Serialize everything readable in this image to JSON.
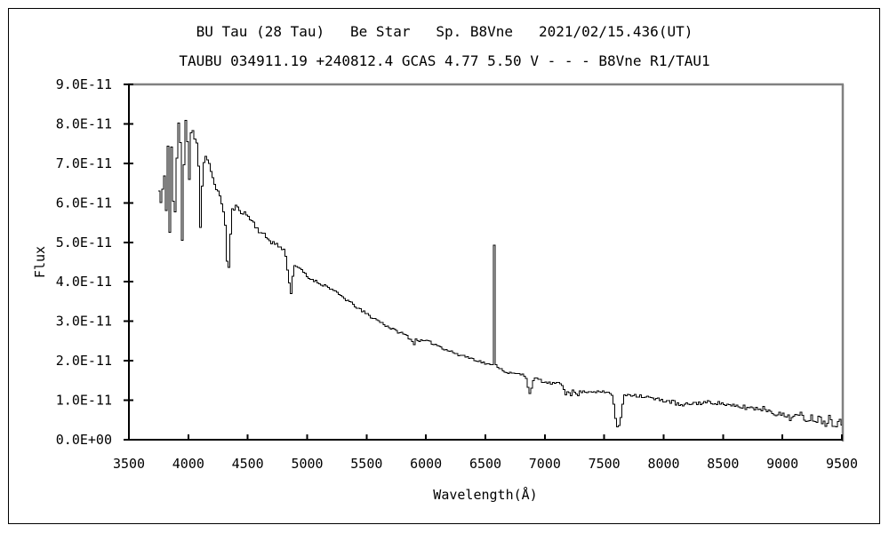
{
  "chart_data": {
    "type": "line",
    "title": "BU Tau (28 Tau)   Be Star   Sp. B8Vne   2021/02/15.436(UT)",
    "subtitle": "TAUBU 034911.19 +240812.4 GCAS 4.77 5.50 V - - - B8Vne R1/TAU1",
    "xlabel": "Wavelength(Å)",
    "ylabel": "Flux",
    "xlim": [
      3500,
      9500
    ],
    "ylim": [
      0,
      9e-11
    ],
    "flux_scale": 1e-11,
    "line_color": "#000000",
    "axis_color": "#000000",
    "frame_shadow_color": "#808080",
    "grid": false,
    "legend": null,
    "x_ticks": [
      {
        "v": 3500,
        "label": "3500"
      },
      {
        "v": 4000,
        "label": "4000"
      },
      {
        "v": 4500,
        "label": "4500"
      },
      {
        "v": 5000,
        "label": "5000"
      },
      {
        "v": 5500,
        "label": "5500"
      },
      {
        "v": 6000,
        "label": "6000"
      },
      {
        "v": 6500,
        "label": "6500"
      },
      {
        "v": 7000,
        "label": "7000"
      },
      {
        "v": 7500,
        "label": "7500"
      },
      {
        "v": 8000,
        "label": "8000"
      },
      {
        "v": 8500,
        "label": "8500"
      },
      {
        "v": 9000,
        "label": "9000"
      },
      {
        "v": 9500,
        "label": "9500"
      }
    ],
    "y_ticks": [
      {
        "v": 0,
        "label": "0.0E+00"
      },
      {
        "v": 1,
        "label": "1.0E-11"
      },
      {
        "v": 2,
        "label": "2.0E-11"
      },
      {
        "v": 3,
        "label": "3.0E-11"
      },
      {
        "v": 4,
        "label": "4.0E-11"
      },
      {
        "v": 5,
        "label": "5.0E-11"
      },
      {
        "v": 6,
        "label": "6.0E-11"
      },
      {
        "v": 7,
        "label": "7.0E-11"
      },
      {
        "v": 8,
        "label": "8.0E-11"
      },
      {
        "v": 9,
        "label": "9.0E-11"
      }
    ],
    "bin_width_angstrom": 15,
    "noise_seed": 11,
    "points": [
      [
        3748,
        6.3
      ],
      [
        3756,
        6.9
      ],
      [
        3762,
        5.8
      ],
      [
        3768,
        7.0
      ],
      [
        3776,
        5.95
      ],
      [
        3783,
        7.3
      ],
      [
        3790,
        6.4
      ],
      [
        3800,
        7.2
      ],
      [
        3807,
        5.6
      ],
      [
        3814,
        6.8
      ],
      [
        3822,
        7.5
      ],
      [
        3830,
        6.0
      ],
      [
        3838,
        5.3
      ],
      [
        3846,
        7.3
      ],
      [
        3854,
        7.6
      ],
      [
        3862,
        6.4
      ],
      [
        3870,
        5.9
      ],
      [
        3878,
        6.3
      ],
      [
        3886,
        5.4
      ],
      [
        3894,
        6.6
      ],
      [
        3902,
        7.7
      ],
      [
        3910,
        8.0
      ],
      [
        3919,
        8.1
      ],
      [
        3928,
        7.4
      ],
      [
        3936,
        6.6
      ],
      [
        3944,
        5.6
      ],
      [
        3950,
        5.1
      ],
      [
        3958,
        6.9
      ],
      [
        3966,
        7.5
      ],
      [
        3974,
        8.1
      ],
      [
        3982,
        7.9
      ],
      [
        3990,
        7.6
      ],
      [
        3998,
        7.4
      ],
      [
        4006,
        6.3
      ],
      [
        4014,
        7.6
      ],
      [
        4022,
        8.1
      ],
      [
        4032,
        7.9
      ],
      [
        4042,
        7.6
      ],
      [
        4052,
        7.7
      ],
      [
        4062,
        7.5
      ],
      [
        4072,
        7.3
      ],
      [
        4082,
        6.9
      ],
      [
        4092,
        6.0
      ],
      [
        4100,
        5.4
      ],
      [
        4108,
        6.4
      ],
      [
        4118,
        7.0
      ],
      [
        4128,
        7.1
      ],
      [
        4140,
        7.15
      ],
      [
        4152,
        7.05
      ],
      [
        4165,
        7.0
      ],
      [
        4180,
        6.85
      ],
      [
        4200,
        6.6
      ],
      [
        4220,
        6.45
      ],
      [
        4240,
        6.3
      ],
      [
        4260,
        6.1
      ],
      [
        4280,
        5.95
      ],
      [
        4300,
        5.6
      ],
      [
        4315,
        4.6
      ],
      [
        4328,
        4.35
      ],
      [
        4340,
        4.6
      ],
      [
        4352,
        5.5
      ],
      [
        4362,
        5.8
      ],
      [
        4375,
        5.85
      ],
      [
        4390,
        5.9
      ],
      [
        4410,
        5.85
      ],
      [
        4430,
        5.8
      ],
      [
        4460,
        5.75
      ],
      [
        4500,
        5.65
      ],
      [
        4540,
        5.5
      ],
      [
        4585,
        5.3
      ],
      [
        4640,
        5.15
      ],
      [
        4700,
        5.0
      ],
      [
        4760,
        4.9
      ],
      [
        4810,
        4.75
      ],
      [
        4830,
        4.3
      ],
      [
        4845,
        3.9
      ],
      [
        4858,
        3.7
      ],
      [
        4870,
        4.1
      ],
      [
        4880,
        4.4
      ],
      [
        4895,
        4.45
      ],
      [
        4910,
        4.35
      ],
      [
        4950,
        4.3
      ],
      [
        5000,
        4.1
      ],
      [
        5050,
        4.05
      ],
      [
        5100,
        3.95
      ],
      [
        5150,
        3.9
      ],
      [
        5200,
        3.82
      ],
      [
        5250,
        3.7
      ],
      [
        5300,
        3.6
      ],
      [
        5350,
        3.5
      ],
      [
        5400,
        3.38
      ],
      [
        5450,
        3.27
      ],
      [
        5500,
        3.18
      ],
      [
        5550,
        3.08
      ],
      [
        5600,
        3.0
      ],
      [
        5650,
        2.9
      ],
      [
        5700,
        2.82
      ],
      [
        5750,
        2.74
      ],
      [
        5800,
        2.68
      ],
      [
        5840,
        2.62
      ],
      [
        5880,
        2.48
      ],
      [
        5895,
        2.42
      ],
      [
        5910,
        2.55
      ],
      [
        5950,
        2.5
      ],
      [
        6000,
        2.5
      ],
      [
        6050,
        2.44
      ],
      [
        6100,
        2.38
      ],
      [
        6150,
        2.3
      ],
      [
        6200,
        2.24
      ],
      [
        6250,
        2.18
      ],
      [
        6280,
        2.1
      ],
      [
        6300,
        2.16
      ],
      [
        6350,
        2.08
      ],
      [
        6400,
        2.04
      ],
      [
        6450,
        1.98
      ],
      [
        6500,
        1.93
      ],
      [
        6540,
        1.88
      ],
      [
        6554,
        1.9
      ],
      [
        6556,
        4.93
      ],
      [
        6568,
        4.93
      ],
      [
        6572,
        1.9
      ],
      [
        6580,
        1.88
      ],
      [
        6600,
        1.86
      ],
      [
        6640,
        1.76
      ],
      [
        6680,
        1.7
      ],
      [
        6720,
        1.68
      ],
      [
        6780,
        1.66
      ],
      [
        6820,
        1.64
      ],
      [
        6845,
        1.55
      ],
      [
        6862,
        1.12
      ],
      [
        6875,
        1.2
      ],
      [
        6890,
        1.45
      ],
      [
        6905,
        1.52
      ],
      [
        6925,
        1.55
      ],
      [
        6950,
        1.52
      ],
      [
        6990,
        1.45
      ],
      [
        7040,
        1.43
      ],
      [
        7090,
        1.43
      ],
      [
        7130,
        1.42
      ],
      [
        7150,
        1.3
      ],
      [
        7170,
        1.15
      ],
      [
        7190,
        1.28
      ],
      [
        7210,
        1.12
      ],
      [
        7230,
        1.25
      ],
      [
        7250,
        1.18
      ],
      [
        7270,
        1.12
      ],
      [
        7290,
        1.22
      ],
      [
        7320,
        1.22
      ],
      [
        7360,
        1.22
      ],
      [
        7400,
        1.22
      ],
      [
        7450,
        1.21
      ],
      [
        7500,
        1.2
      ],
      [
        7540,
        1.2
      ],
      [
        7565,
        1.1
      ],
      [
        7585,
        0.6
      ],
      [
        7600,
        0.32
      ],
      [
        7612,
        0.55
      ],
      [
        7622,
        0.34
      ],
      [
        7635,
        0.6
      ],
      [
        7650,
        0.95
      ],
      [
        7665,
        1.12
      ],
      [
        7690,
        1.15
      ],
      [
        7730,
        1.14
      ],
      [
        7780,
        1.12
      ],
      [
        7830,
        1.1
      ],
      [
        7880,
        1.06
      ],
      [
        7930,
        1.02
      ],
      [
        7980,
        1.0
      ],
      [
        8030,
        0.98
      ],
      [
        8080,
        0.95
      ],
      [
        8120,
        0.88
      ],
      [
        8160,
        0.85
      ],
      [
        8200,
        0.9
      ],
      [
        8250,
        0.93
      ],
      [
        8300,
        0.93
      ],
      [
        8350,
        0.94
      ],
      [
        8400,
        0.95
      ],
      [
        8450,
        0.93
      ],
      [
        8500,
        0.92
      ],
      [
        8550,
        0.85
      ],
      [
        8600,
        0.83
      ],
      [
        8650,
        0.83
      ],
      [
        8700,
        0.82
      ],
      [
        8750,
        0.8
      ],
      [
        8800,
        0.8
      ],
      [
        8850,
        0.78
      ],
      [
        8900,
        0.72
      ],
      [
        8950,
        0.65
      ],
      [
        9000,
        0.62
      ],
      [
        9050,
        0.6
      ],
      [
        9100,
        0.58
      ],
      [
        9150,
        0.6
      ],
      [
        9200,
        0.55
      ],
      [
        9250,
        0.55
      ],
      [
        9300,
        0.52
      ],
      [
        9350,
        0.5
      ],
      [
        9400,
        0.52
      ],
      [
        9450,
        0.48
      ],
      [
        9500,
        0.55
      ]
    ],
    "overrides": [
      [
        6562,
        4.93
      ],
      [
        4860,
        3.7
      ],
      [
        4338,
        4.37
      ],
      [
        4100,
        5.38
      ],
      [
        7608,
        0.33
      ],
      [
        7622,
        0.36
      ],
      [
        3950,
        5.05
      ],
      [
        3838,
        5.25
      ]
    ],
    "noise_regions": [
      {
        "from": 3750,
        "to": 4130,
        "amp": 0.18
      },
      {
        "from": 4130,
        "to": 4900,
        "amp": 0.06
      },
      {
        "from": 4900,
        "to": 6540,
        "amp": 0.035
      },
      {
        "from": 6580,
        "to": 7560,
        "amp": 0.03
      },
      {
        "from": 7660,
        "to": 8500,
        "amp": 0.05
      },
      {
        "from": 8500,
        "to": 9000,
        "amp": 0.07
      },
      {
        "from": 9000,
        "to": 9350,
        "amp": 0.11
      },
      {
        "from": 9350,
        "to": 9500,
        "amp": 0.17
      }
    ]
  }
}
